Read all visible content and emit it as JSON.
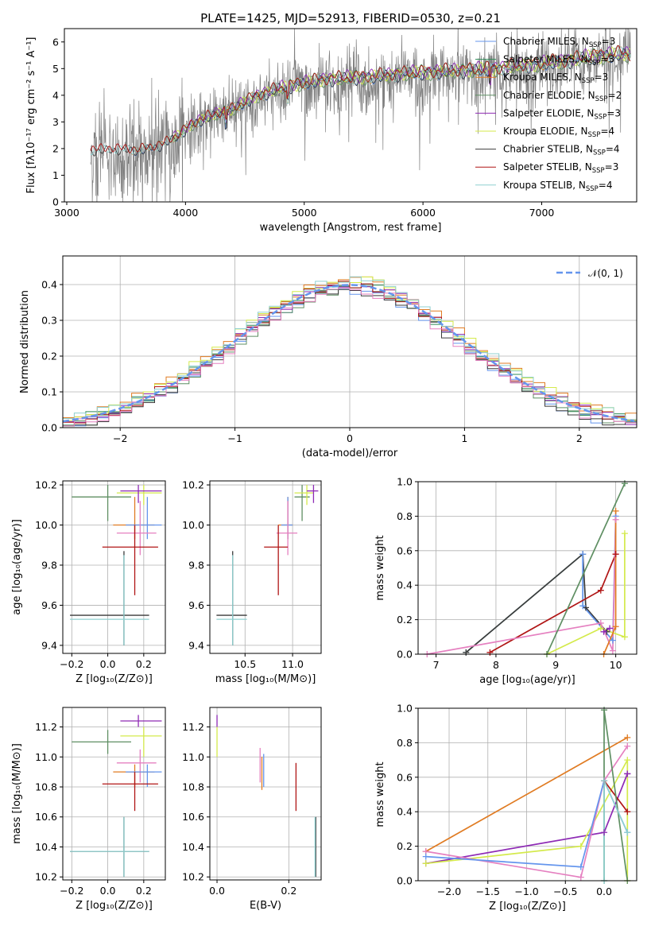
{
  "colors": {
    "chabrier_miles": "#6495ed",
    "salpeter_miles": "#2e8b57",
    "kroupa_miles": "#e07b22",
    "chabrier_elodie": "#5f8f63",
    "salpeter_elodie": "#8e2bb5",
    "kroupa_elodie": "#d4ea4b",
    "chabrier_stelib": "#3b3b3b",
    "salpeter_stelib": "#b01515",
    "kroupa_stelib": "#8fd0d0",
    "pink": "#e580c0",
    "gray_data": "#808080",
    "gauss": "#6495ed"
  },
  "chart_data": [
    {
      "id": "spectrum",
      "type": "line",
      "title": "PLATE=1425, MJD=52913, FIBERID=0530, z=0.21",
      "xlabel": "wavelength [Angstrom, rest frame]",
      "ylabel": "Flux [fλ10⁻¹⁷ erg cm⁻² s⁻¹ A⁻¹]",
      "xlim": [
        2980,
        7800
      ],
      "ylim": [
        0,
        6.5
      ],
      "xticks": [
        "3000",
        "4000",
        "5000",
        "6000",
        "7000"
      ],
      "yticks": [
        "0",
        "1",
        "2",
        "3",
        "4",
        "5",
        "6"
      ],
      "legend_position": "top-right",
      "legend": [
        {
          "name": "Chabrier MILES, N",
          "sub": "SSP",
          "suffix": "=3"
        },
        {
          "name": "Salpeter MILES, N",
          "sub": "SSP",
          "suffix": "=3"
        },
        {
          "name": "Kroupa MILES, N",
          "sub": "SSP",
          "suffix": "=3"
        },
        {
          "name": "Chabrier ELODIE, N",
          "sub": "SSP",
          "suffix": "=2"
        },
        {
          "name": "Salpeter ELODIE, N",
          "sub": "SSP",
          "suffix": "=3"
        },
        {
          "name": "Kroupa ELODIE, N",
          "sub": "SSP",
          "suffix": "=4"
        },
        {
          "name": "Chabrier STELIB, N",
          "sub": "SSP",
          "suffix": "=4"
        },
        {
          "name": "Salpeter STELIB, N",
          "sub": "SSP",
          "suffix": "=3"
        },
        {
          "name": "Kroupa STELIB, N",
          "sub": "SSP",
          "suffix": "=4"
        }
      ],
      "continuum": {
        "x": [
          3200,
          3400,
          3600,
          3800,
          3950,
          4050,
          4200,
          4400,
          4600,
          4800,
          5000,
          5200,
          5400,
          5600,
          5800,
          6000,
          6200,
          6400,
          6600,
          6800,
          7000,
          7200,
          7400,
          7600
        ],
        "y": [
          2.0,
          2.05,
          2.0,
          2.2,
          2.6,
          3.0,
          3.3,
          3.6,
          4.1,
          4.4,
          4.6,
          4.75,
          4.8,
          4.85,
          4.95,
          5.0,
          5.05,
          5.1,
          5.15,
          5.25,
          5.35,
          5.45,
          5.6,
          5.7
        ]
      }
    },
    {
      "id": "residuals",
      "type": "bar",
      "xlabel": "(data-model)/error",
      "ylabel": "Normed distribution",
      "xlim": [
        -2.5,
        2.5
      ],
      "ylim": [
        0,
        0.48
      ],
      "xticks": [
        "−2",
        "−1",
        "0",
        "1",
        "2"
      ],
      "yticks": [
        "0.0",
        "0.1",
        "0.2",
        "0.3",
        "0.4"
      ],
      "legend_position": "top-right",
      "legend_label": "𝒩(0, 1)",
      "bin_width": 0.1
    },
    {
      "id": "age_vs_z",
      "type": "scatter",
      "xlabel": "Z [log₁₀(Z/Z⊙)]",
      "ylabel": "age  [log₁₀(age/yr)]",
      "xlim": [
        -0.25,
        0.32
      ],
      "ylim": [
        9.36,
        10.22
      ],
      "xticks": [
        "−0.2",
        "0.0",
        "0.2"
      ],
      "yticks": [
        "9.4",
        "9.6",
        "9.8",
        "10.0",
        "10.2"
      ],
      "points": [
        {
          "c": "chabrier_elodie",
          "x": 0.0,
          "y": 10.14,
          "ex": [
            -0.2,
            0.13
          ],
          "ey": [
            10.02,
            10.2
          ]
        },
        {
          "c": "kroupa_elodie",
          "x": 0.2,
          "y": 10.16,
          "ex": [
            0.05,
            0.3
          ],
          "ey": [
            10.1,
            10.2
          ]
        },
        {
          "c": "salpeter_elodie",
          "x": 0.17,
          "y": 10.17,
          "ex": [
            0.07,
            0.3
          ],
          "ey": [
            10.11,
            10.2
          ]
        },
        {
          "c": "kroupa_miles",
          "x": 0.15,
          "y": 10.0,
          "ex": [
            0.03,
            0.26
          ],
          "ey": [
            9.93,
            10.14
          ]
        },
        {
          "c": "chabrier_miles",
          "x": 0.22,
          "y": 10.0,
          "ex": [
            0.1,
            0.3
          ],
          "ey": [
            9.93,
            10.14
          ]
        },
        {
          "c": "pink",
          "x": 0.18,
          "y": 9.96,
          "ex": [
            0.05,
            0.27
          ],
          "ey": [
            9.85,
            10.12
          ]
        },
        {
          "c": "salpeter_stelib",
          "x": 0.15,
          "y": 9.89,
          "ex": [
            -0.03,
            0.28
          ],
          "ey": [
            9.65,
            10.0
          ]
        },
        {
          "c": "chabrier_stelib",
          "x": 0.09,
          "y": 9.55,
          "ex": [
            -0.21,
            0.23
          ],
          "ey": [
            9.4,
            9.87
          ]
        },
        {
          "c": "kroupa_stelib",
          "x": 0.09,
          "y": 9.53,
          "ex": [
            -0.21,
            0.23
          ],
          "ey": [
            9.4,
            9.85
          ]
        }
      ]
    },
    {
      "id": "age_vs_mass",
      "type": "scatter",
      "xlabel": "mass [log₁₀(M/M⊙)]",
      "ylabel": "",
      "xlim": [
        10.13,
        11.3
      ],
      "ylim": [
        9.36,
        10.22
      ],
      "xticks": [
        "10.5",
        "11.0"
      ],
      "yticks": [
        "9.4",
        "9.6",
        "9.8",
        "10.0",
        "10.2"
      ],
      "points": [
        {
          "c": "chabrier_elodie",
          "x": 11.1,
          "y": 10.14,
          "ex": [
            11.02,
            11.18
          ],
          "ey": [
            10.02,
            10.2
          ]
        },
        {
          "c": "kroupa_elodie",
          "x": 11.15,
          "y": 10.16,
          "ex": [
            11.02,
            11.22
          ],
          "ey": [
            10.1,
            10.2
          ]
        },
        {
          "c": "salpeter_elodie",
          "x": 11.22,
          "y": 10.17,
          "ex": [
            11.15,
            11.27
          ],
          "ey": [
            10.11,
            10.2
          ]
        },
        {
          "c": "kroupa_miles",
          "x": 10.95,
          "y": 10.0,
          "ex": [
            10.85,
            11.0
          ],
          "ey": [
            9.93,
            10.14
          ]
        },
        {
          "c": "chabrier_miles",
          "x": 10.95,
          "y": 10.0,
          "ex": [
            10.88,
            11.0
          ],
          "ey": [
            9.93,
            10.14
          ]
        },
        {
          "c": "pink",
          "x": 10.95,
          "y": 9.96,
          "ex": [
            10.83,
            11.05
          ],
          "ey": [
            9.85,
            10.12
          ]
        },
        {
          "c": "salpeter_stelib",
          "x": 10.85,
          "y": 9.89,
          "ex": [
            10.7,
            10.95
          ],
          "ey": [
            9.65,
            10.0
          ]
        },
        {
          "c": "chabrier_stelib",
          "x": 10.37,
          "y": 9.55,
          "ex": [
            10.2,
            10.52
          ],
          "ey": [
            9.4,
            9.87
          ]
        },
        {
          "c": "kroupa_stelib",
          "x": 10.37,
          "y": 9.53,
          "ex": [
            10.2,
            10.52
          ],
          "ey": [
            9.4,
            9.85
          ]
        }
      ]
    },
    {
      "id": "weight_vs_age",
      "type": "line",
      "xlabel": "age  [log₁₀(age/yr)]",
      "ylabel": "mass weight",
      "xlim": [
        6.7,
        10.35
      ],
      "ylim": [
        0,
        1.0
      ],
      "xticks": [
        "7",
        "8",
        "9",
        "10"
      ],
      "yticks": [
        "0.0",
        "0.2",
        "0.4",
        "0.6",
        "0.8",
        "1.0"
      ],
      "series": [
        {
          "c": "kroupa_stelib",
          "x": [
            7.5,
            9.45,
            9.45
          ],
          "y": [
            0.01,
            0.58,
            0.28
          ]
        },
        {
          "c": "chabrier_stelib",
          "x": [
            7.5,
            9.45,
            9.5,
            9.85
          ],
          "y": [
            0.01,
            0.58,
            0.27,
            0.13
          ]
        },
        {
          "c": "chabrier_miles",
          "x": [
            9.45,
            9.45,
            9.95,
            10.0
          ],
          "y": [
            0.58,
            0.28,
            0.08,
            0.8
          ]
        },
        {
          "c": "salpeter_stelib",
          "x": [
            7.9,
            9.75,
            10.0,
            10.0
          ],
          "y": [
            0.01,
            0.37,
            0.58,
            0.58
          ]
        },
        {
          "c": "pink",
          "x": [
            6.85,
            9.75,
            9.95,
            10.0
          ],
          "y": [
            0.0,
            0.18,
            0.02,
            0.78
          ]
        },
        {
          "c": "kroupa_elodie",
          "x": [
            8.85,
            9.75,
            10.15,
            10.15
          ],
          "y": [
            0.0,
            0.15,
            0.1,
            0.7
          ]
        },
        {
          "c": "chabrier_elodie",
          "x": [
            8.85,
            10.15
          ],
          "y": [
            0.0,
            0.99
          ]
        },
        {
          "c": "kroupa_miles",
          "x": [
            9.8,
            10.0,
            10.0
          ],
          "y": [
            0.0,
            0.16,
            0.83
          ]
        },
        {
          "c": "salpeter_elodie",
          "x": [
            9.8,
            9.9
          ],
          "y": [
            0.13,
            0.15
          ]
        }
      ]
    },
    {
      "id": "mass_vs_z",
      "type": "scatter",
      "xlabel": "Z [log₁₀(Z/Z⊙)]",
      "ylabel": "mass [log₁₀(M/M⊙)]",
      "xlim": [
        -0.25,
        0.32
      ],
      "ylim": [
        10.18,
        11.33
      ],
      "xticks": [
        "−0.2",
        "0.0",
        "0.2"
      ],
      "yticks": [
        "10.2",
        "10.4",
        "10.6",
        "10.8",
        "11.0",
        "11.2"
      ],
      "points": [
        {
          "c": "salpeter_elodie",
          "x": 0.17,
          "y": 11.24,
          "ex": [
            0.07,
            0.3
          ],
          "ey": [
            11.2,
            11.28
          ]
        },
        {
          "c": "kroupa_elodie",
          "x": 0.2,
          "y": 11.14,
          "ex": [
            0.07,
            0.3
          ],
          "ey": [
            11.0,
            11.2
          ]
        },
        {
          "c": "chabrier_elodie",
          "x": 0.0,
          "y": 11.1,
          "ex": [
            -0.2,
            0.13
          ],
          "ey": [
            11.02,
            11.18
          ]
        },
        {
          "c": "pink",
          "x": 0.18,
          "y": 10.96,
          "ex": [
            0.05,
            0.27
          ],
          "ey": [
            10.83,
            11.05
          ]
        },
        {
          "c": "kroupa_miles",
          "x": 0.15,
          "y": 10.9,
          "ex": [
            0.03,
            0.26
          ],
          "ey": [
            10.8,
            10.95
          ]
        },
        {
          "c": "chabrier_miles",
          "x": 0.22,
          "y": 10.9,
          "ex": [
            0.1,
            0.3
          ],
          "ey": [
            10.8,
            10.95
          ]
        },
        {
          "c": "salpeter_stelib",
          "x": 0.15,
          "y": 10.82,
          "ex": [
            -0.03,
            0.28
          ],
          "ey": [
            10.64,
            10.9
          ]
        },
        {
          "c": "chabrier_stelib",
          "x": 0.09,
          "y": 10.37,
          "ex": [
            -0.21,
            0.23
          ],
          "ey": [
            10.2,
            10.6
          ]
        },
        {
          "c": "kroupa_stelib",
          "x": 0.09,
          "y": 10.37,
          "ex": [
            -0.21,
            0.23
          ],
          "ey": [
            10.2,
            10.6
          ]
        }
      ]
    },
    {
      "id": "mass_vs_ebv",
      "type": "scatter",
      "xlabel": "E(B-V)",
      "ylabel": "",
      "xlim": [
        -0.02,
        0.29
      ],
      "ylim": [
        10.18,
        11.33
      ],
      "xticks": [
        "0.0",
        "0.2"
      ],
      "yticks": [
        "10.2",
        "10.4",
        "10.6",
        "10.8",
        "11.0",
        "11.2"
      ],
      "points": [
        {
          "c": "salpeter_elodie",
          "x": 0.0,
          "y": 11.24,
          "ex": [
            0.0,
            0.0
          ],
          "ey": [
            11.2,
            11.28
          ]
        },
        {
          "c": "kroupa_elodie",
          "x": 0.0,
          "y": 11.1,
          "ex": [
            0.0,
            0.0
          ],
          "ey": [
            11.0,
            11.2
          ]
        },
        {
          "c": "pink",
          "x": 0.12,
          "y": 10.95,
          "ex": [
            0.12,
            0.12
          ],
          "ey": [
            10.83,
            11.06
          ]
        },
        {
          "c": "chabrier_miles",
          "x": 0.13,
          "y": 10.92,
          "ex": [
            0.13,
            0.13
          ],
          "ey": [
            10.8,
            11.02
          ]
        },
        {
          "c": "kroupa_miles",
          "x": 0.125,
          "y": 10.9,
          "ex": [
            0.125,
            0.125
          ],
          "ey": [
            10.78,
            11.0
          ]
        },
        {
          "c": "salpeter_stelib",
          "x": 0.22,
          "y": 10.8,
          "ex": [
            0.22,
            0.22
          ],
          "ey": [
            10.64,
            10.96
          ]
        },
        {
          "c": "chabrier_stelib",
          "x": 0.275,
          "y": 10.37,
          "ex": [
            0.275,
            0.275
          ],
          "ey": [
            10.2,
            10.6
          ]
        },
        {
          "c": "kroupa_stelib",
          "x": 0.273,
          "y": 10.37,
          "ex": [
            0.273,
            0.273
          ],
          "ey": [
            10.2,
            10.6
          ]
        }
      ]
    },
    {
      "id": "weight_vs_z",
      "type": "line",
      "xlabel": "Z [log₁₀(Z/Z⊙)]",
      "ylabel": "mass weight",
      "xlim": [
        -2.4,
        0.42
      ],
      "ylim": [
        0,
        1.0
      ],
      "xticks": [
        "−2.0",
        "−1.5",
        "−1.0",
        "−0.5",
        "0.0"
      ],
      "yticks": [
        "0.0",
        "0.2",
        "0.4",
        "0.6",
        "0.8",
        "1.0"
      ],
      "series": [
        {
          "c": "kroupa_miles",
          "x": [
            -2.3,
            0.3
          ],
          "y": [
            0.17,
            0.83
          ]
        },
        {
          "c": "salpeter_elodie",
          "x": [
            -2.3,
            0.0,
            0.3,
            0.3
          ],
          "y": [
            0.1,
            0.28,
            0.62,
            0.62
          ]
        },
        {
          "c": "kroupa_elodie",
          "x": [
            -2.3,
            -0.3,
            0.3,
            0.3
          ],
          "y": [
            0.1,
            0.2,
            0.7,
            0.0
          ]
        },
        {
          "c": "pink",
          "x": [
            -2.3,
            -0.3,
            0.0,
            0.3
          ],
          "y": [
            0.17,
            0.02,
            0.58,
            0.78
          ]
        },
        {
          "c": "chabrier_miles",
          "x": [
            -2.3,
            -0.3,
            0.0,
            0.3
          ],
          "y": [
            0.14,
            0.08,
            0.58,
            0.28
          ]
        },
        {
          "c": "salpeter_stelib",
          "x": [
            0.0,
            0.3
          ],
          "y": [
            0.58,
            0.4
          ]
        },
        {
          "c": "chabrier_elodie",
          "x": [
            0.0,
            0.0,
            0.3
          ],
          "y": [
            0.0,
            0.99,
            0.0
          ]
        },
        {
          "c": "kroupa_stelib",
          "x": [
            0.0,
            0.0,
            0.3
          ],
          "y": [
            0.0,
            0.58,
            0.28
          ]
        }
      ]
    }
  ]
}
